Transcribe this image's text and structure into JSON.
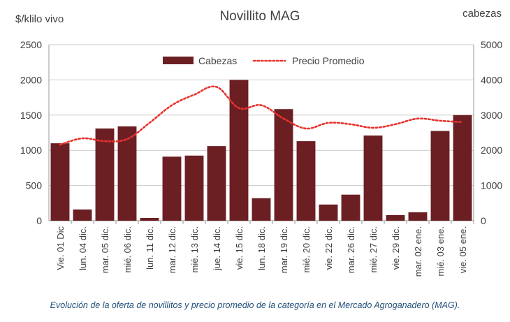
{
  "chart_data": {
    "type": "bar",
    "title": "Novillito MAG",
    "ylabel_left": "$/klilo vivo",
    "ylabel_right": "cabezas",
    "categories": [
      "Vie. 01 Dic",
      "lun. 04 dic.",
      "mar. 05 dic.",
      "mié. 06 dic.",
      "lun. 11 dic.",
      "mar. 12 dic.",
      "mié. 13 dic.",
      "jue. 14 dic.",
      "vie. 15 dic.",
      "lun. 18 dic.",
      "mar. 19 dic.",
      "mié. 20 dic.",
      "vie. 22 dic.",
      "mar. 26 dic.",
      "mié. 27 dic.",
      "vie. 29 dic.",
      "mar. 02 ene.",
      "mié. 03 ene.",
      "vie. 05 ene."
    ],
    "series": [
      {
        "name": "Cabezas",
        "axis": "right",
        "kind": "bar",
        "color": "#6b1f23",
        "values": [
          2200,
          320,
          2620,
          2680,
          80,
          1820,
          1850,
          2120,
          4000,
          640,
          3170,
          2260,
          460,
          740,
          2420,
          160,
          240,
          2550,
          3000
        ]
      },
      {
        "name": "Precio Promedio",
        "axis": "left",
        "kind": "line-dotted",
        "color": "#e8322c",
        "values": [
          1080,
          1170,
          1130,
          1160,
          1390,
          1640,
          1790,
          1900,
          1600,
          1640,
          1450,
          1310,
          1390,
          1370,
          1320,
          1370,
          1450,
          1420,
          1400
        ]
      }
    ],
    "yleft_lim": [
      0,
      2500
    ],
    "yleft_ticks": [
      "0",
      "500",
      "1000",
      "1500",
      "2000",
      "2500"
    ],
    "yright_lim": [
      0,
      5000
    ],
    "yright_ticks": [
      "0",
      "1000",
      "2000",
      "3000",
      "4000",
      "5000"
    ],
    "legend_position": "top-center",
    "grid": true
  },
  "caption": "Evolución de la oferta de novillitos y precio promedio de la categoría en el Mercado Agroganadero (MAG)."
}
